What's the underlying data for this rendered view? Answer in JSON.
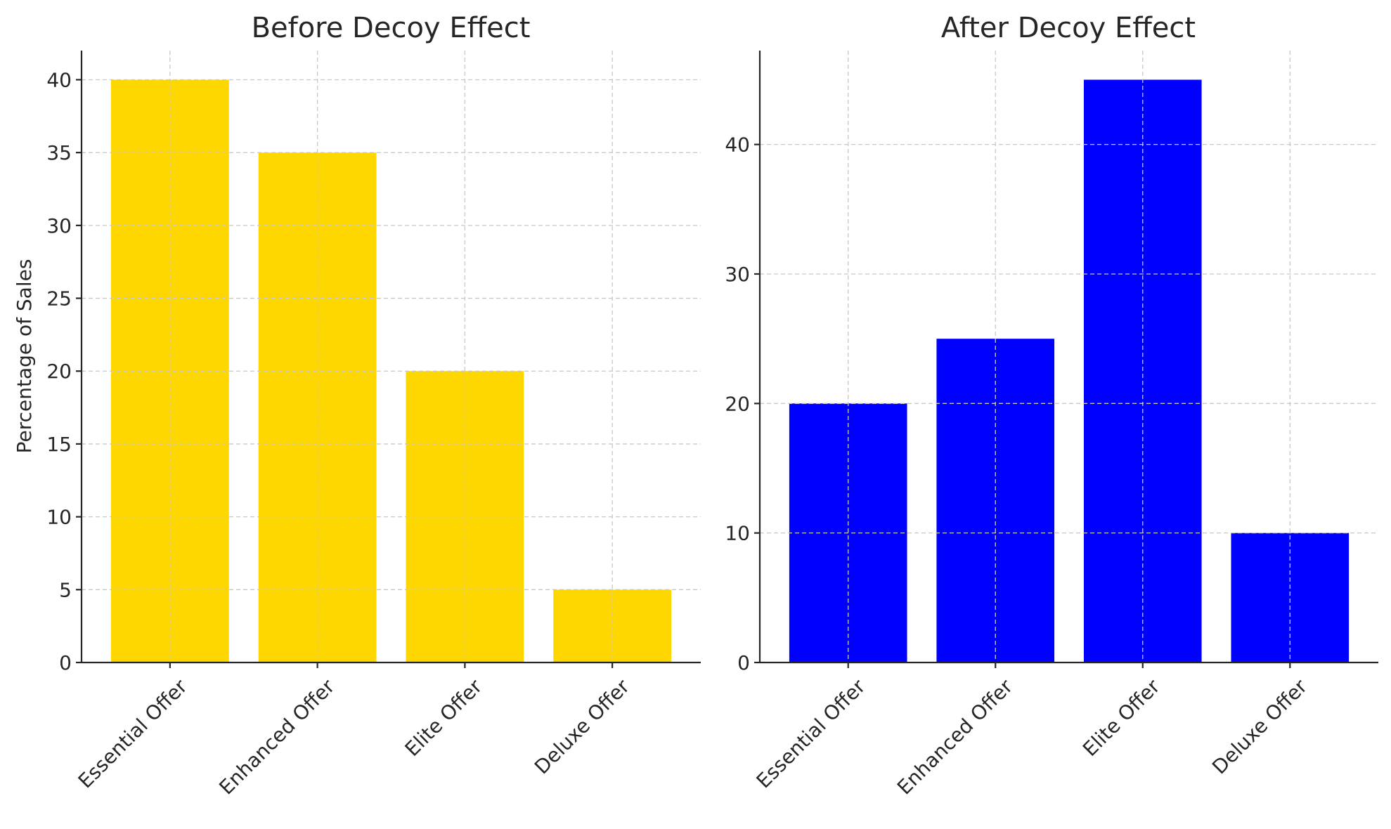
{
  "chart_data": [
    {
      "type": "bar",
      "title": "Before Decoy Effect",
      "xlabel": "",
      "ylabel": "Percentage of Sales",
      "categories": [
        "Essential Offer",
        "Enhanced Offer",
        "Elite Offer",
        "Deluxe Offer"
      ],
      "values": [
        40,
        35,
        20,
        5
      ],
      "color": "#FFD700",
      "ylim": [
        0,
        42
      ],
      "yticks": [
        0,
        5,
        10,
        15,
        20,
        25,
        30,
        35,
        40
      ],
      "grid": true
    },
    {
      "type": "bar",
      "title": "After Decoy Effect",
      "xlabel": "",
      "ylabel": "",
      "categories": [
        "Essential Offer",
        "Enhanced Offer",
        "Elite Offer",
        "Deluxe Offer"
      ],
      "values": [
        20,
        25,
        45,
        10
      ],
      "color": "#0000FF",
      "ylim": [
        0,
        47.25
      ],
      "yticks": [
        0,
        10,
        20,
        30,
        40
      ],
      "grid": true
    }
  ]
}
